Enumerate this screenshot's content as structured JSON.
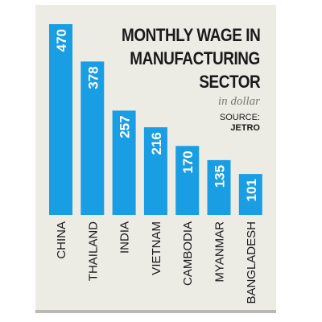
{
  "colors": {
    "bar": "#1a9ee3",
    "panel": "#ecebe4",
    "value_text": "#ffffff",
    "label_text": "#1a1a1a"
  },
  "title_lines": [
    "MONTHLY WAGE IN",
    "MANUFACTURING",
    "SECTOR"
  ],
  "subtitle": "in dollar",
  "source": {
    "label": "SOURCE:",
    "value": "JETRO"
  },
  "chart_data": {
    "type": "bar",
    "orientation": "vertical",
    "title": "MONTHLY WAGE IN MANUFACTURING SECTOR",
    "subtitle": "in dollar",
    "categories": [
      "CHINA",
      "THAILAND",
      "INDIA",
      "VIETNAM",
      "CAMBODIA",
      "MYANMAR",
      "BANGLADESH"
    ],
    "values": [
      470,
      378,
      257,
      216,
      170,
      135,
      101
    ],
    "data_labels": [
      "470",
      "378",
      "257",
      "216",
      "170",
      "135",
      "101"
    ],
    "ylim": [
      0,
      470
    ],
    "grid": false,
    "legend": "none"
  }
}
